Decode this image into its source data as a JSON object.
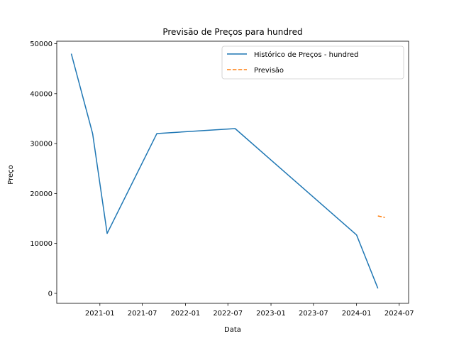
{
  "chart_data": {
    "type": "line",
    "title": "Previsão de Preços para hundred",
    "xlabel": "Data",
    "ylabel": "Preço",
    "xlim": [
      "2020-07-01",
      "2024-08-10"
    ],
    "ylim": [
      -2000,
      50500
    ],
    "x_ticks": [
      "2021-01",
      "2021-07",
      "2022-01",
      "2022-07",
      "2023-01",
      "2023-07",
      "2024-01",
      "2024-07"
    ],
    "y_ticks": [
      0,
      10000,
      20000,
      30000,
      40000,
      50000
    ],
    "grid": false,
    "legend_position": "top-right",
    "series": [
      {
        "name": "Histórico de Preços - hundred",
        "style": "solid",
        "color": "#1f77b4",
        "points": [
          {
            "x": "2020-09-01",
            "y": 48000
          },
          {
            "x": "2020-12-01",
            "y": 32000
          },
          {
            "x": "2021-02-01",
            "y": 12000
          },
          {
            "x": "2021-09-01",
            "y": 32000
          },
          {
            "x": "2022-08-01",
            "y": 33000
          },
          {
            "x": "2024-01-01",
            "y": 11700
          },
          {
            "x": "2024-04-01",
            "y": 1000
          }
        ]
      },
      {
        "name": "Previsão",
        "style": "dashed",
        "color": "#ff7f0e",
        "points": [
          {
            "x": "2024-04-01",
            "y": 15500
          },
          {
            "x": "2024-05-01",
            "y": 15200
          }
        ]
      }
    ]
  }
}
